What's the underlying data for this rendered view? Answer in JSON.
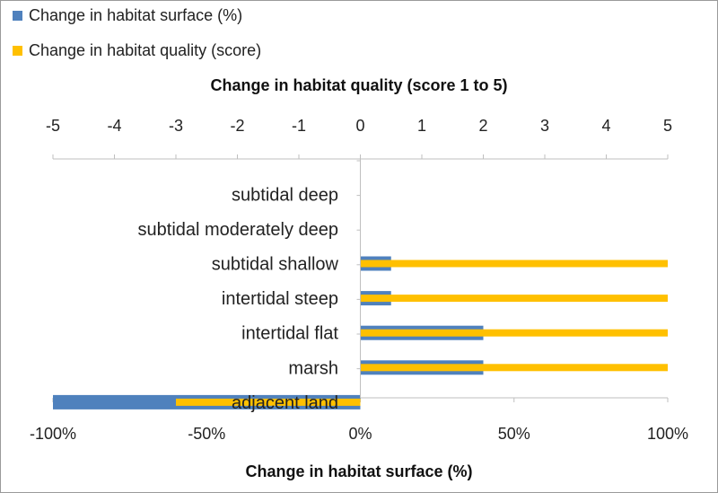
{
  "chart_data": {
    "type": "bar",
    "orientation": "horizontal",
    "categories": [
      "subtidal deep",
      "subtidal moderately deep",
      "subtidal shallow",
      "intertidal steep",
      "intertidal flat",
      "marsh",
      "adjacent land"
    ],
    "series": [
      {
        "name": "Change in habitat surface (%)",
        "axis": "bottom",
        "color": "#4f81bd",
        "values": [
          0,
          0,
          10,
          10,
          40,
          40,
          -100
        ]
      },
      {
        "name": "Change in habitat quality (score)",
        "axis": "top",
        "color": "#ffc000",
        "values": [
          0,
          0,
          5,
          5,
          5,
          5,
          -3
        ]
      }
    ],
    "top_axis": {
      "label": "Change in habitat quality (score 1 to 5)",
      "range": [
        -5,
        5
      ],
      "ticks": [
        -5,
        -4,
        -3,
        -2,
        -1,
        0,
        1,
        2,
        3,
        4,
        5
      ],
      "tick_labels": [
        "-5",
        "-4",
        "-3",
        "-2",
        "-1",
        "0",
        "1",
        "2",
        "3",
        "4",
        "5"
      ]
    },
    "bottom_axis": {
      "label": "Change in habitat surface (%)",
      "range": [
        -100,
        100
      ],
      "ticks": [
        -100,
        -50,
        0,
        50,
        100
      ],
      "tick_labels": [
        "-100%",
        "-50%",
        "0%",
        "50%",
        "100%"
      ]
    },
    "legend_position": "top-left",
    "grid": false
  }
}
